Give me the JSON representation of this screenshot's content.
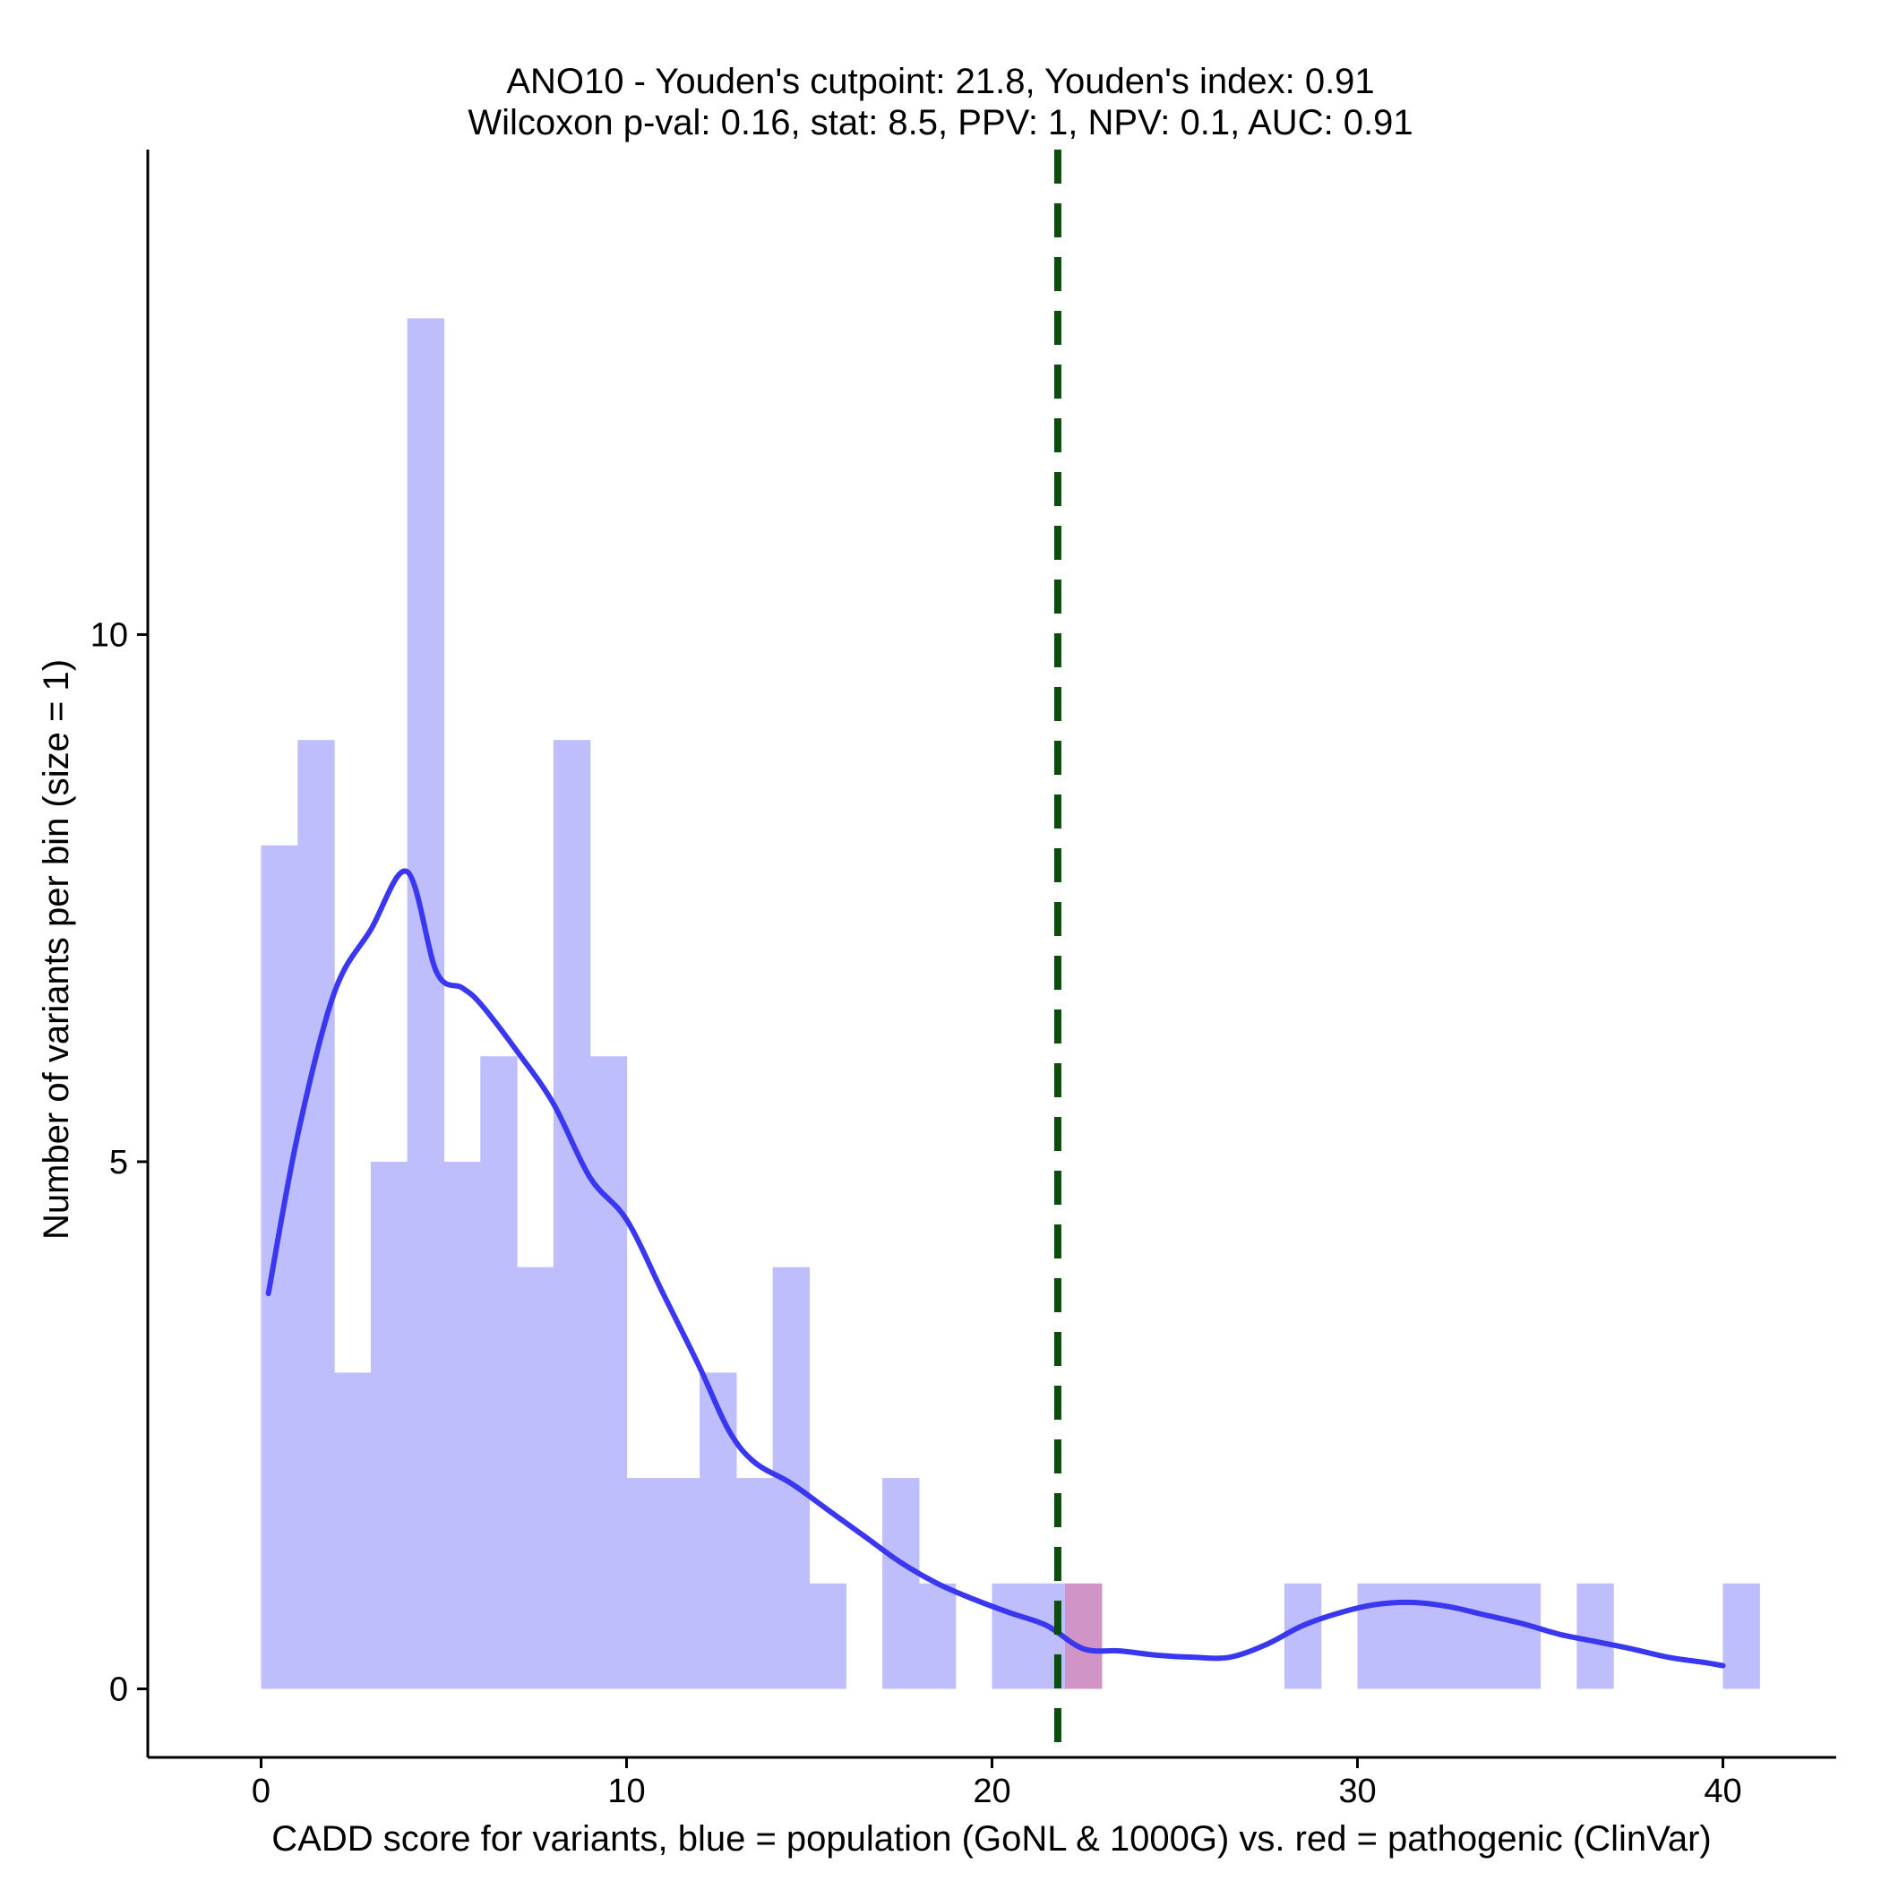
{
  "chart_data": {
    "type": "bar",
    "title_line1": "ANO10 - Youden's cutpoint: 21.8, Youden's index: 0.91",
    "title_line2": "Wilcoxon p-val: 0.16, stat: 8.5, PPV: 1, NPV: 0.1, AUC: 0.91",
    "xlabel": "CADD score for variants, blue = population (GoNL & 1000G) vs. red = pathogenic (ClinVar)",
    "ylabel": "Number of variants per bin (size = 1)",
    "xlim": [
      -3.1,
      43.1
    ],
    "ylim": [
      -0.65,
      14.6
    ],
    "xticks": [
      0,
      10,
      20,
      30,
      40
    ],
    "yticks": [
      0,
      5,
      10
    ],
    "bin_size": 1,
    "colors": {
      "population": "#bebefc",
      "pathogenic": "#d095c6",
      "density": "#3a37f0",
      "cutpoint": "#0b4d0b"
    },
    "series": [
      {
        "name": "population",
        "bins": [
          {
            "x": 0,
            "count": 8
          },
          {
            "x": 1,
            "count": 9
          },
          {
            "x": 2,
            "count": 3
          },
          {
            "x": 3,
            "count": 5
          },
          {
            "x": 4,
            "count": 13
          },
          {
            "x": 5,
            "count": 5
          },
          {
            "x": 6,
            "count": 6
          },
          {
            "x": 7,
            "count": 4
          },
          {
            "x": 8,
            "count": 9
          },
          {
            "x": 9,
            "count": 6
          },
          {
            "x": 10,
            "count": 2
          },
          {
            "x": 11,
            "count": 2
          },
          {
            "x": 12,
            "count": 3
          },
          {
            "x": 13,
            "count": 2
          },
          {
            "x": 14,
            "count": 4
          },
          {
            "x": 15,
            "count": 1
          },
          {
            "x": 17,
            "count": 2
          },
          {
            "x": 18,
            "count": 1
          },
          {
            "x": 20,
            "count": 1
          },
          {
            "x": 21,
            "count": 1
          },
          {
            "x": 28,
            "count": 1
          },
          {
            "x": 30,
            "count": 1
          },
          {
            "x": 31,
            "count": 1
          },
          {
            "x": 32,
            "count": 1
          },
          {
            "x": 33,
            "count": 1
          },
          {
            "x": 34,
            "count": 1
          },
          {
            "x": 36,
            "count": 1
          },
          {
            "x": 40,
            "count": 1
          }
        ]
      },
      {
        "name": "pathogenic",
        "bins": [
          {
            "x": 22,
            "count": 1
          }
        ]
      }
    ],
    "density_curve": {
      "x": [
        0.2,
        1,
        2,
        3,
        4,
        4.8,
        5.5,
        6,
        7,
        8,
        9,
        10,
        11,
        12,
        12.8,
        13.5,
        14.5,
        15.5,
        16.5,
        17.5,
        18.5,
        19.5,
        20.5,
        21.5,
        22.5,
        23.5,
        24.5,
        25.5,
        26.5,
        27.5,
        28.5,
        29.5,
        30.5,
        31.5,
        32.5,
        33.5,
        34.5,
        35.5,
        36.5,
        37.5,
        38.5,
        39.5,
        40
      ],
      "y": [
        3.75,
        5.25,
        6.6,
        7.2,
        7.75,
        6.8,
        6.65,
        6.5,
        6.05,
        5.55,
        4.85,
        4.45,
        3.75,
        3.05,
        2.45,
        2.15,
        1.95,
        1.7,
        1.45,
        1.2,
        1.0,
        0.85,
        0.72,
        0.6,
        0.38,
        0.36,
        0.32,
        0.3,
        0.3,
        0.42,
        0.6,
        0.72,
        0.8,
        0.82,
        0.78,
        0.7,
        0.62,
        0.52,
        0.45,
        0.38,
        0.3,
        0.25,
        0.22
      ]
    },
    "cutpoint": 21.8,
    "grid": false,
    "legend": "none"
  }
}
